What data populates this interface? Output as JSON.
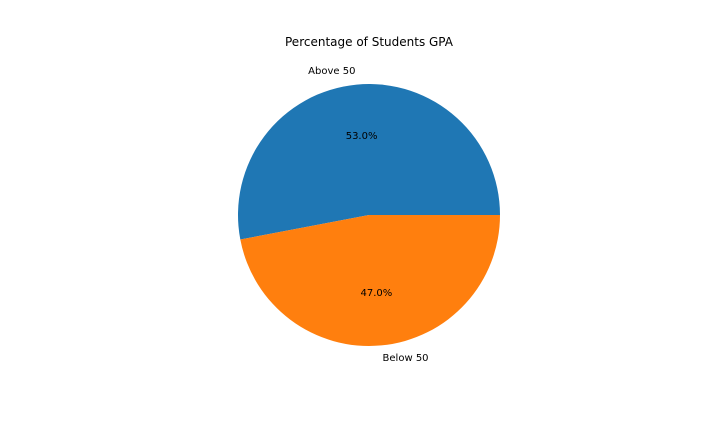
{
  "chart_data": {
    "type": "pie",
    "title": "Percentage of Students GPA",
    "slices": [
      {
        "label": "Above 50",
        "value": 53.0,
        "pct_label": "53.0%",
        "color": "#1f77b4"
      },
      {
        "label": "Below 50",
        "value": 47.0,
        "pct_label": "47.0%",
        "color": "#ff7f0e"
      }
    ]
  }
}
